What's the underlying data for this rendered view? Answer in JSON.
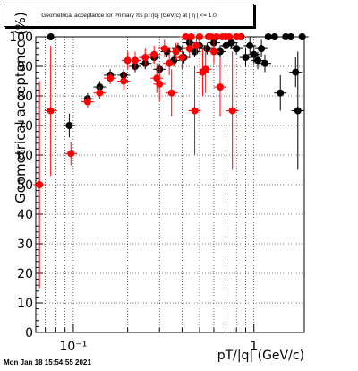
{
  "title": "Geometrical acceptance for Primary πs pT/|q| (GeV/c) at | η | <= 1.0",
  "timestamp": "Mon Jan 18 15:54:55 2021",
  "colors": {
    "series_black": "#000000",
    "series_red": "#ff0000",
    "grid": "#000000",
    "background": "#ffffff"
  },
  "chart_data": {
    "type": "scatter",
    "title": "Geometrical acceptance for Primary πs pT/|q| (GeV/c) at | η | <= 1.0",
    "xlabel": "pT/|q| (GeV/c)",
    "ylabel": "Geometrical acceptance (%)",
    "xscale": "log",
    "xlim": [
      0.062,
      1.9
    ],
    "ylim": [
      0,
      100
    ],
    "yticks": [
      0,
      10,
      20,
      30,
      40,
      50,
      60,
      70,
      80,
      90,
      100
    ],
    "xtick_labels": [
      {
        "value": 0.1,
        "label": "10⁻¹"
      },
      {
        "value": 1,
        "label": "1"
      }
    ],
    "grid": true,
    "series": [
      {
        "color": "#000000",
        "points": [
          {
            "x": 0.075,
            "y": 100,
            "yerr": 0
          },
          {
            "x": 0.095,
            "y": 70,
            "yerr": 4
          },
          {
            "x": 0.12,
            "y": 79,
            "yerr": 2
          },
          {
            "x": 0.14,
            "y": 83,
            "yerr": 2
          },
          {
            "x": 0.16,
            "y": 87,
            "yerr": 2
          },
          {
            "x": 0.19,
            "y": 87,
            "yerr": 2
          },
          {
            "x": 0.22,
            "y": 90,
            "yerr": 2
          },
          {
            "x": 0.25,
            "y": 91,
            "yerr": 2
          },
          {
            "x": 0.28,
            "y": 93,
            "yerr": 2
          },
          {
            "x": 0.3,
            "y": 89,
            "yerr": 2
          },
          {
            "x": 0.33,
            "y": 95,
            "yerr": 2
          },
          {
            "x": 0.36,
            "y": 92,
            "yerr": 2
          },
          {
            "x": 0.38,
            "y": 96,
            "yerr": 2
          },
          {
            "x": 0.41,
            "y": 93,
            "yerr": 2
          },
          {
            "x": 0.44,
            "y": 98,
            "yerr": 2
          },
          {
            "x": 0.47,
            "y": 95,
            "yerr": 2
          },
          {
            "x": 0.5,
            "y": 97,
            "yerr": 2
          },
          {
            "x": 0.55,
            "y": 96,
            "yerr": 2
          },
          {
            "x": 0.6,
            "y": 98,
            "yerr": 2
          },
          {
            "x": 0.65,
            "y": 95,
            "yerr": 2
          },
          {
            "x": 0.7,
            "y": 97,
            "yerr": 2
          },
          {
            "x": 0.75,
            "y": 98,
            "yerr": 2
          },
          {
            "x": 0.8,
            "y": 96,
            "yerr": 2
          },
          {
            "x": 0.85,
            "y": 100,
            "yerr": 0
          },
          {
            "x": 0.9,
            "y": 93,
            "yerr": 3
          },
          {
            "x": 0.95,
            "y": 97,
            "yerr": 3
          },
          {
            "x": 1.0,
            "y": 94,
            "yerr": 3
          },
          {
            "x": 1.05,
            "y": 92,
            "yerr": 3
          },
          {
            "x": 1.1,
            "y": 96,
            "yerr": 3
          },
          {
            "x": 1.15,
            "y": 91,
            "yerr": 3
          },
          {
            "x": 1.2,
            "y": 100,
            "yerr": 0
          },
          {
            "x": 1.3,
            "y": 100,
            "yerr": 0
          },
          {
            "x": 1.4,
            "y": 81,
            "yerr": 6
          },
          {
            "x": 1.5,
            "y": 100,
            "yerr": 0
          },
          {
            "x": 1.6,
            "y": 100,
            "yerr": 0
          },
          {
            "x": 1.7,
            "y": 88,
            "yerr": 5
          },
          {
            "x": 1.75,
            "y": 75,
            "yerr": 20
          },
          {
            "x": 1.85,
            "y": 100,
            "yerr": 0
          }
        ]
      },
      {
        "color": "#ff0000",
        "points": [
          {
            "x": 0.065,
            "y": 50,
            "yerr": 35
          },
          {
            "x": 0.075,
            "y": 75,
            "yerr": 22
          },
          {
            "x": 0.097,
            "y": 60.5,
            "yerr": 4
          },
          {
            "x": 0.12,
            "y": 78,
            "yerr": 2
          },
          {
            "x": 0.14,
            "y": 81,
            "yerr": 2
          },
          {
            "x": 0.16,
            "y": 86,
            "yerr": 2
          },
          {
            "x": 0.19,
            "y": 85,
            "yerr": 3
          },
          {
            "x": 0.2,
            "y": 92,
            "yerr": 3
          },
          {
            "x": 0.22,
            "y": 92,
            "yerr": 3
          },
          {
            "x": 0.25,
            "y": 93,
            "yerr": 3
          },
          {
            "x": 0.28,
            "y": 94,
            "yerr": 3
          },
          {
            "x": 0.29,
            "y": 86,
            "yerr": 5
          },
          {
            "x": 0.3,
            "y": 84,
            "yerr": 6
          },
          {
            "x": 0.32,
            "y": 96,
            "yerr": 3
          },
          {
            "x": 0.34,
            "y": 91,
            "yerr": 4
          },
          {
            "x": 0.35,
            "y": 81,
            "yerr": 8
          },
          {
            "x": 0.37,
            "y": 95,
            "yerr": 3
          },
          {
            "x": 0.4,
            "y": 93,
            "yerr": 4
          },
          {
            "x": 0.42,
            "y": 100,
            "yerr": 0
          },
          {
            "x": 0.44,
            "y": 96,
            "yerr": 3
          },
          {
            "x": 0.45,
            "y": 100,
            "yerr": 0
          },
          {
            "x": 0.47,
            "y": 75,
            "yerr": 15
          },
          {
            "x": 0.48,
            "y": 97,
            "yerr": 3
          },
          {
            "x": 0.5,
            "y": 100,
            "yerr": 0
          },
          {
            "x": 0.52,
            "y": 88,
            "yerr": 8
          },
          {
            "x": 0.54,
            "y": 89,
            "yerr": 8
          },
          {
            "x": 0.56,
            "y": 100,
            "yerr": 0
          },
          {
            "x": 0.58,
            "y": 100,
            "yerr": 0
          },
          {
            "x": 0.6,
            "y": 95,
            "yerr": 4
          },
          {
            "x": 0.62,
            "y": 100,
            "yerr": 0
          },
          {
            "x": 0.65,
            "y": 83,
            "yerr": 10
          },
          {
            "x": 0.67,
            "y": 100,
            "yerr": 0
          },
          {
            "x": 0.7,
            "y": 100,
            "yerr": 0
          },
          {
            "x": 0.73,
            "y": 100,
            "yerr": 0
          },
          {
            "x": 0.76,
            "y": 75,
            "yerr": 20
          },
          {
            "x": 0.8,
            "y": 100,
            "yerr": 0
          },
          {
            "x": 0.84,
            "y": 100,
            "yerr": 0
          }
        ]
      }
    ]
  }
}
